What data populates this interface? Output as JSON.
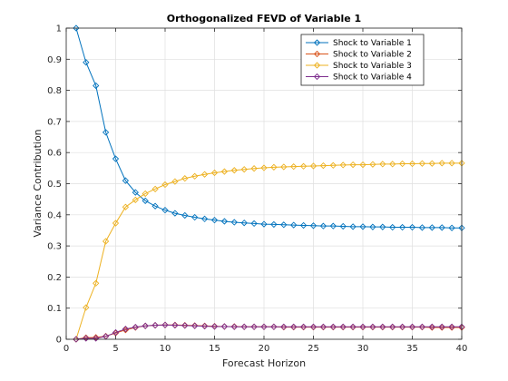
{
  "chart_data": {
    "type": "line",
    "title": "Orthogonalized FEVD of Variable 1",
    "xlabel": "Forecast Horizon",
    "ylabel": "Variance Contribution",
    "xlim": [
      0,
      40
    ],
    "ylim": [
      0,
      1
    ],
    "xticks": [
      "0",
      "5",
      "10",
      "15",
      "20",
      "25",
      "30",
      "35",
      "40"
    ],
    "yticks": [
      "0",
      "0.1",
      "0.2",
      "0.3",
      "0.4",
      "0.5",
      "0.6",
      "0.7",
      "0.8",
      "0.9",
      "1"
    ],
    "grid": true,
    "legend_position": "top-right",
    "x": [
      1,
      2,
      3,
      4,
      5,
      6,
      7,
      8,
      9,
      10,
      11,
      12,
      13,
      14,
      15,
      16,
      17,
      18,
      19,
      20,
      21,
      22,
      23,
      24,
      25,
      26,
      27,
      28,
      29,
      30,
      31,
      32,
      33,
      34,
      35,
      36,
      37,
      38,
      39,
      40
    ],
    "series": [
      {
        "name": "Shock to Variable 1",
        "color": "#0072BD",
        "values": [
          1.0,
          0.89,
          0.815,
          0.665,
          0.58,
          0.51,
          0.472,
          0.445,
          0.428,
          0.415,
          0.405,
          0.398,
          0.392,
          0.387,
          0.383,
          0.379,
          0.376,
          0.374,
          0.372,
          0.37,
          0.369,
          0.368,
          0.367,
          0.366,
          0.365,
          0.364,
          0.364,
          0.363,
          0.362,
          0.362,
          0.361,
          0.361,
          0.36,
          0.36,
          0.36,
          0.359,
          0.359,
          0.359,
          0.358,
          0.358
        ]
      },
      {
        "name": "Shock to Variable 2",
        "color": "#D95319",
        "values": [
          0.0,
          0.005,
          0.006,
          0.01,
          0.02,
          0.03,
          0.038,
          0.043,
          0.045,
          0.046,
          0.046,
          0.045,
          0.044,
          0.043,
          0.042,
          0.041,
          0.041,
          0.04,
          0.04,
          0.04,
          0.04,
          0.039,
          0.039,
          0.039,
          0.039,
          0.039,
          0.039,
          0.039,
          0.039,
          0.039,
          0.039,
          0.039,
          0.039,
          0.039,
          0.039,
          0.039,
          0.038,
          0.038,
          0.038,
          0.038
        ]
      },
      {
        "name": "Shock to Variable 3",
        "color": "#EDB120",
        "values": [
          0.0,
          0.102,
          0.18,
          0.315,
          0.373,
          0.425,
          0.448,
          0.468,
          0.483,
          0.497,
          0.507,
          0.517,
          0.524,
          0.53,
          0.535,
          0.539,
          0.543,
          0.546,
          0.549,
          0.551,
          0.553,
          0.554,
          0.555,
          0.556,
          0.557,
          0.558,
          0.559,
          0.56,
          0.561,
          0.561,
          0.562,
          0.563,
          0.563,
          0.564,
          0.564,
          0.565,
          0.565,
          0.566,
          0.566,
          0.566
        ]
      },
      {
        "name": "Shock to Variable 4",
        "color": "#7E2F8E",
        "values": [
          0.0,
          0.003,
          0.003,
          0.009,
          0.022,
          0.033,
          0.039,
          0.043,
          0.045,
          0.046,
          0.045,
          0.044,
          0.043,
          0.042,
          0.041,
          0.041,
          0.04,
          0.04,
          0.04,
          0.04,
          0.04,
          0.04,
          0.04,
          0.04,
          0.04,
          0.04,
          0.04,
          0.04,
          0.04,
          0.04,
          0.04,
          0.04,
          0.04,
          0.04,
          0.04,
          0.04,
          0.04,
          0.04,
          0.04,
          0.04
        ]
      }
    ]
  }
}
